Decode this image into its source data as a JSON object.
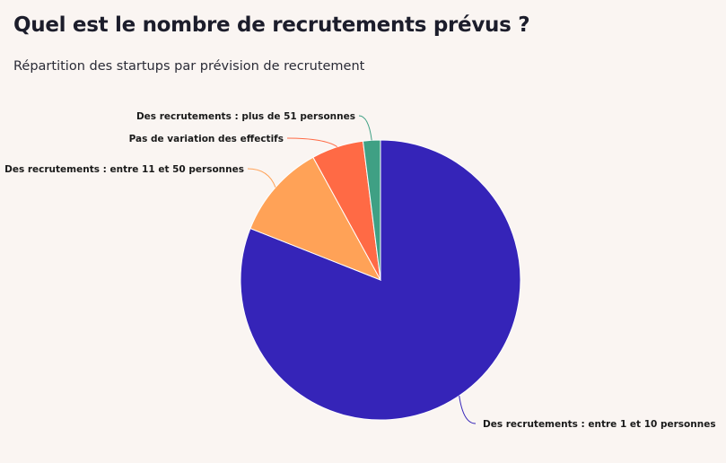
{
  "chart_data": {
    "type": "pie",
    "title": "Quel est le nombre de recrutements prévus ?",
    "subtitle": "Répartition des startups par prévision de recrutement",
    "slices": [
      {
        "label": "Des recrutements : entre 1 et 10 personnes",
        "value": 81,
        "color": "#3524b8"
      },
      {
        "label": "Des recrutements : entre 11 et 50 personnes",
        "value": 11,
        "color": "#ffa257"
      },
      {
        "label": "Pas de variation des effectifs",
        "value": 6,
        "color": "#ff6a45"
      },
      {
        "label": "Des recrutements : plus de 51 personnes",
        "value": 2,
        "color": "#3fa084"
      }
    ]
  }
}
